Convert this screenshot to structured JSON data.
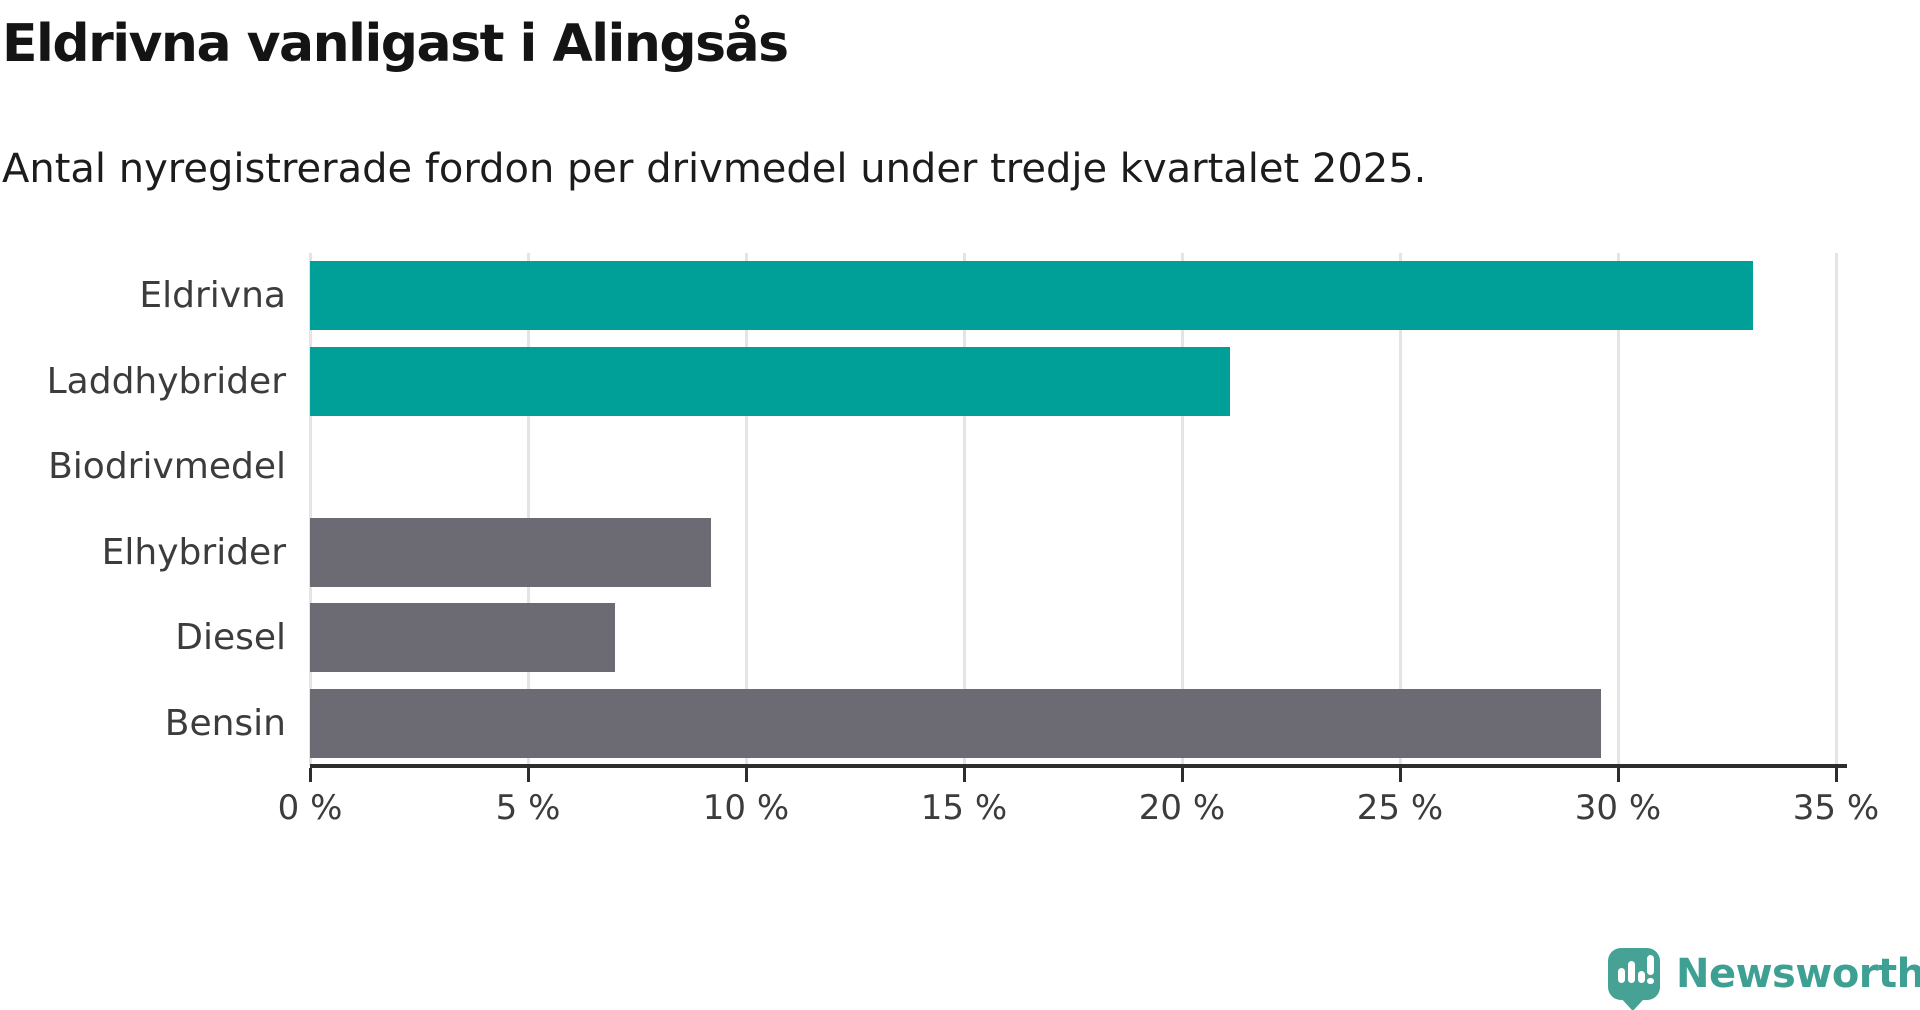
{
  "title": "Eldrivna vanligast i Alingsås",
  "subtitle": "Antal nyregistrerade fordon per drivmedel under tredje kvartalet 2025.",
  "chart_data": {
    "type": "bar",
    "orientation": "horizontal",
    "title": "Eldrivna vanligast i Alingsås",
    "subtitle": "Antal nyregistrerade fordon per drivmedel under tredje kvartalet 2025.",
    "categories": [
      "Eldrivna",
      "Laddhybrider",
      "Biodrivmedel",
      "Elhybrider",
      "Diesel",
      "Bensin"
    ],
    "values": [
      33.1,
      21.1,
      0,
      9.2,
      7.0,
      29.6
    ],
    "unit": "%",
    "xlim": [
      0,
      35
    ],
    "x_ticks": [
      "0 %",
      "5 %",
      "10 %",
      "15 %",
      "20 %",
      "25 %",
      "30 %",
      "35 %"
    ],
    "x_tick_values": [
      0,
      5,
      10,
      15,
      20,
      25,
      30,
      35
    ],
    "grid": true,
    "legend": "none",
    "bar_colors": [
      "#00a099",
      "#00a099",
      "#00a099",
      "#6c6b74",
      "#6c6b74",
      "#6c6b74"
    ],
    "highlight_color": "#00a099",
    "base_color": "#6c6b74",
    "gridline_color": "#e4e4e4",
    "axis_color": "#2d2d2d"
  },
  "footer": {
    "brand": "Newsworthy",
    "brand_color": "#3da092",
    "icon_color": "#45a294",
    "icon": "speech-bubble-bar-chart-icon"
  }
}
